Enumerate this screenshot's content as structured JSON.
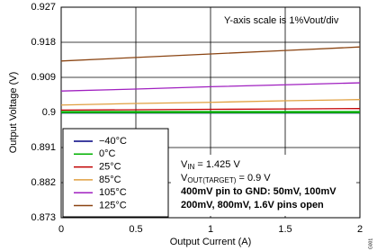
{
  "chart_data": {
    "type": "line",
    "xlabel": "Output Current (A)",
    "ylabel": "Output Voltage (V)",
    "x": [
      0,
      0.5,
      1,
      1.5,
      2
    ],
    "series": [
      {
        "name": "−40°C",
        "color": "#000080",
        "values": [
          0.9,
          0.9,
          0.9,
          0.9,
          0.9
        ]
      },
      {
        "name": "0°C",
        "color": "#00b000",
        "values": [
          0.9001,
          0.9001,
          0.9001,
          0.9001,
          0.9001
        ]
      },
      {
        "name": "25°C",
        "color": "#c00000",
        "values": [
          0.9006,
          0.9007,
          0.9008,
          0.9009,
          0.901
        ]
      },
      {
        "name": "85°C",
        "color": "#e0a040",
        "values": [
          0.9019,
          0.9023,
          0.9026,
          0.903,
          0.9033
        ]
      },
      {
        "name": "105°C",
        "color": "#a020c0",
        "values": [
          0.9055,
          0.906,
          0.9066,
          0.9071,
          0.9076
        ]
      },
      {
        "name": "125°C",
        "color": "#8b4513",
        "values": [
          0.9132,
          0.9141,
          0.915,
          0.9159,
          0.9168
        ]
      }
    ],
    "xlim": [
      0,
      2
    ],
    "xticks": [
      0,
      0.5,
      1,
      1.5,
      2
    ],
    "ylim": [
      0.873,
      0.927
    ],
    "yticks": [
      0.873,
      0.882,
      0.891,
      0.9,
      0.909,
      0.918,
      0.927
    ],
    "grid": true,
    "legend": "lower left",
    "scale_note": "Y-axis scale is 1%Vout/div",
    "vin": {
      "base": "V",
      "sub": "IN",
      "rest": " = 1.425 V"
    },
    "vout": {
      "base": "V",
      "sub": "OUT(TARGET)",
      "rest": " = 0.9 V"
    },
    "pins_1": "400mV pin to GND:  50mV, 100mV",
    "pins_2": "200mV, 800mV, 1.6V pins  open",
    "figure_id": "G001"
  }
}
